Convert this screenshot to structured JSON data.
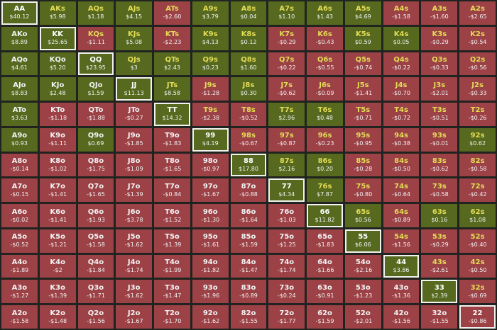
{
  "colors": {
    "positive": "#56691f",
    "negative": "#9c4146",
    "suited_label": "#e2dc55",
    "offsuit_label": "#f2f2f2"
  },
  "rows": [
    [
      [
        "AA",
        "$40.12"
      ],
      [
        "AKs",
        "$5.98"
      ],
      [
        "AQs",
        "$1.18"
      ],
      [
        "AJs",
        "$4.15"
      ],
      [
        "ATs",
        "-$2.60"
      ],
      [
        "A9s",
        "$3.79"
      ],
      [
        "A8s",
        "$0.04"
      ],
      [
        "A7s",
        "$1.10"
      ],
      [
        "A6s",
        "$1.43"
      ],
      [
        "A5s",
        "$4.69"
      ],
      [
        "A4s",
        "-$1.58"
      ],
      [
        "A3s",
        "-$1.60"
      ],
      [
        "A2s",
        "-$2.65"
      ]
    ],
    [
      [
        "AKo",
        "$8.89"
      ],
      [
        "KK",
        "$25.65"
      ],
      [
        "KQs",
        "-$1.11"
      ],
      [
        "KJs",
        "$5.08"
      ],
      [
        "KTs",
        "-$2.23"
      ],
      [
        "K9s",
        "$4.13"
      ],
      [
        "K8s",
        "$0.12"
      ],
      [
        "K7s",
        "-$0.29"
      ],
      [
        "K6s",
        "-$0.43"
      ],
      [
        "K5s",
        "$0.59"
      ],
      [
        "K4s",
        "$0.05"
      ],
      [
        "K3s",
        "-$0.29"
      ],
      [
        "K2s",
        "-$0.54"
      ]
    ],
    [
      [
        "AQo",
        "$4.61"
      ],
      [
        "KQo",
        "$5.20"
      ],
      [
        "QQ",
        "$23.95"
      ],
      [
        "QJs",
        "$3"
      ],
      [
        "QTs",
        "$2.43"
      ],
      [
        "Q9s",
        "$0.23"
      ],
      [
        "Q8s",
        "$1.60"
      ],
      [
        "Q7s",
        "-$0.22"
      ],
      [
        "Q6s",
        "-$0.55"
      ],
      [
        "Q5s",
        "-$0.74"
      ],
      [
        "Q4s",
        "-$0.22"
      ],
      [
        "Q3s",
        "-$0.33"
      ],
      [
        "Q2s",
        "-$0.56"
      ]
    ],
    [
      [
        "AJo",
        "$8.83"
      ],
      [
        "KJo",
        "$2.48"
      ],
      [
        "QJo",
        "$1.59"
      ],
      [
        "JJ",
        "$11.13"
      ],
      [
        "JTs",
        "$8.58"
      ],
      [
        "J9s",
        "-$1.28"
      ],
      [
        "J8s",
        "$0.30"
      ],
      [
        "J7s",
        "-$0.62"
      ],
      [
        "J6s",
        "-$0.09"
      ],
      [
        "J5s",
        "-$1.41"
      ],
      [
        "J4s",
        "-$0.70"
      ],
      [
        "J3s",
        "-$2.01"
      ],
      [
        "J2s",
        "-$0.33"
      ]
    ],
    [
      [
        "ATo",
        "$3.63"
      ],
      [
        "KTo",
        "-$1.18"
      ],
      [
        "QTo",
        "-$1.88"
      ],
      [
        "JTo",
        "-$0.27"
      ],
      [
        "TT",
        "$14.32"
      ],
      [
        "T9s",
        "-$2.38"
      ],
      [
        "T8s",
        "-$0.52"
      ],
      [
        "T7s",
        "$2.96"
      ],
      [
        "T6s",
        "$0.48"
      ],
      [
        "T5s",
        "-$0.71"
      ],
      [
        "T4s",
        "-$0.72"
      ],
      [
        "T3s",
        "-$0.51"
      ],
      [
        "T2s",
        "-$0.26"
      ]
    ],
    [
      [
        "A9o",
        "$0.93"
      ],
      [
        "K9o",
        "-$1.11"
      ],
      [
        "Q9o",
        "$0.69"
      ],
      [
        "J9o",
        "-$1.85"
      ],
      [
        "T9o",
        "-$1.83"
      ],
      [
        "99",
        "$4.19"
      ],
      [
        "98s",
        "-$0.67"
      ],
      [
        "97s",
        "-$0.87"
      ],
      [
        "96s",
        "-$0.23"
      ],
      [
        "95s",
        "-$0.95"
      ],
      [
        "94s",
        "-$0.38"
      ],
      [
        "93s",
        "-$0.01"
      ],
      [
        "92s",
        "$0.62"
      ]
    ],
    [
      [
        "A8o",
        "-$0.14"
      ],
      [
        "K8o",
        "-$1.02"
      ],
      [
        "Q8o",
        "-$1.75"
      ],
      [
        "J8o",
        "-$1.09"
      ],
      [
        "T8o",
        "-$1.65"
      ],
      [
        "98o",
        "-$0.97"
      ],
      [
        "88",
        "$17.80"
      ],
      [
        "87s",
        "$2.16"
      ],
      [
        "86s",
        "$0.20"
      ],
      [
        "85s",
        "-$0.28"
      ],
      [
        "84s",
        "-$0.50"
      ],
      [
        "83s",
        "-$0.62"
      ],
      [
        "82s",
        "-$0.58"
      ]
    ],
    [
      [
        "A7o",
        "-$0.15"
      ],
      [
        "K7o",
        "-$1.41"
      ],
      [
        "Q7o",
        "-$1.65"
      ],
      [
        "J7o",
        "-$1.39"
      ],
      [
        "T7o",
        "-$0.84"
      ],
      [
        "97o",
        "-$1.67"
      ],
      [
        "87o",
        "-$0.88"
      ],
      [
        "77",
        "$4.34"
      ],
      [
        "76s",
        "$7.87"
      ],
      [
        "75s",
        "-$0.80"
      ],
      [
        "74s",
        "-$0.64"
      ],
      [
        "73s",
        "-$0.58"
      ],
      [
        "72s",
        "-$0.42"
      ]
    ],
    [
      [
        "A6o",
        "-$0.02"
      ],
      [
        "K6o",
        "-$1.41"
      ],
      [
        "Q6o",
        "-$1.93"
      ],
      [
        "J6o",
        "-$3.78"
      ],
      [
        "T6o",
        "-$1.52"
      ],
      [
        "96o",
        "-$1.30"
      ],
      [
        "86o",
        "-$1.64"
      ],
      [
        "76o",
        "-$1.03"
      ],
      [
        "66",
        "$11.82"
      ],
      [
        "65s",
        "$0.56"
      ],
      [
        "64s",
        "-$0.89"
      ],
      [
        "63s",
        "$0.16"
      ],
      [
        "62s",
        "$1.08"
      ]
    ],
    [
      [
        "A5o",
        "-$0.52"
      ],
      [
        "K5o",
        "-$1.21"
      ],
      [
        "Q5o",
        "-$1.58"
      ],
      [
        "J5o",
        "-$1.62"
      ],
      [
        "T5o",
        "-$1.39"
      ],
      [
        "95o",
        "-$1.61"
      ],
      [
        "85o",
        "-$1.59"
      ],
      [
        "75o",
        "-$1.25"
      ],
      [
        "65o",
        "-$1.83"
      ],
      [
        "55",
        "$6.06"
      ],
      [
        "54s",
        "-$1.56"
      ],
      [
        "53s",
        "-$0.29"
      ],
      [
        "52s",
        "-$0.40"
      ]
    ],
    [
      [
        "A4o",
        "-$1.89"
      ],
      [
        "K4o",
        "-$2"
      ],
      [
        "Q4o",
        "-$1.84"
      ],
      [
        "J4o",
        "-$1.74"
      ],
      [
        "T4o",
        "-$1.99"
      ],
      [
        "94o",
        "-$1.82"
      ],
      [
        "84o",
        "-$1.47"
      ],
      [
        "74o",
        "-$1.74"
      ],
      [
        "64o",
        "-$1.66"
      ],
      [
        "54o",
        "-$2.16"
      ],
      [
        "44",
        "$3.86"
      ],
      [
        "43s",
        "-$2.61"
      ],
      [
        "42s",
        "-$0.50"
      ]
    ],
    [
      [
        "A3o",
        "-$1.27"
      ],
      [
        "K3o",
        "-$1.39"
      ],
      [
        "Q3o",
        "-$1.71"
      ],
      [
        "J3o",
        "-$1.62"
      ],
      [
        "T3o",
        "-$1.47"
      ],
      [
        "93o",
        "-$1.96"
      ],
      [
        "83o",
        "-$0.89"
      ],
      [
        "73o",
        "-$0.24"
      ],
      [
        "63o",
        "-$0.91"
      ],
      [
        "53o",
        "-$1.23"
      ],
      [
        "43o",
        "-$1.36"
      ],
      [
        "33",
        "$2.39"
      ],
      [
        "32s",
        "-$0.69"
      ]
    ],
    [
      [
        "A2o",
        "-$1.58"
      ],
      [
        "K2o",
        "-$1.48"
      ],
      [
        "Q2o",
        "-$1.56"
      ],
      [
        "J2o",
        "-$1.67"
      ],
      [
        "T2o",
        "-$1.70"
      ],
      [
        "92o",
        "-$1.62"
      ],
      [
        "82o",
        "-$1.55"
      ],
      [
        "72o",
        "-$1.77"
      ],
      [
        "62o",
        "-$1.59"
      ],
      [
        "52o",
        "-$2.01"
      ],
      [
        "42o",
        "-$1.56"
      ],
      [
        "32o",
        "-$1.55"
      ],
      [
        "22",
        "-$0.86"
      ]
    ]
  ]
}
